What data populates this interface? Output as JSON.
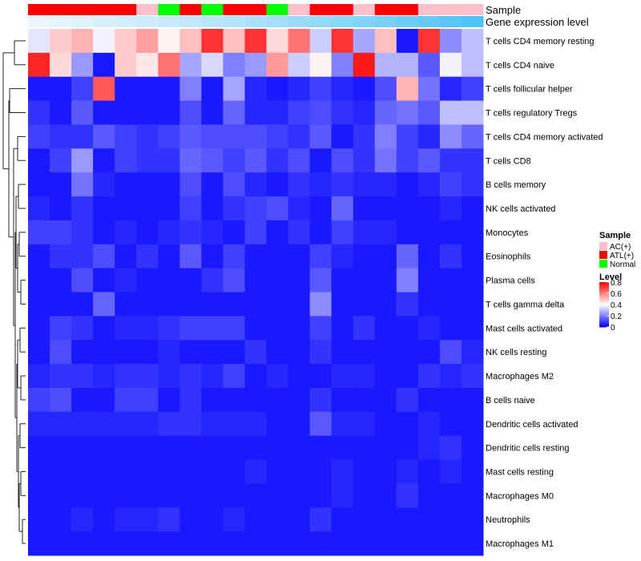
{
  "chart_data": {
    "type": "heatmap",
    "annotation_labels": [
      "Sample",
      "Gene expression level"
    ],
    "rows": [
      "T cells CD4 memory resting",
      "T cells CD4 naive",
      "T cells follicular helper",
      "T cells regulatory  Tregs",
      "T cells CD4 memory activated",
      "T cells CD8",
      "B cells memory",
      "NK cells activated",
      "Monocytes",
      "Eosinophils",
      "Plasma cells",
      "T cells gamma delta",
      "Mast cells activated",
      "NK cells resting",
      "Macrophages M2",
      "B cells naive",
      "Dendritic cells activated",
      "Dendritic cells resting",
      "Mast cells resting",
      "Macrophages M0",
      "Neutrophils",
      "Macrophages M1"
    ],
    "sample_groups": [
      "ATL(+)",
      "ATL(+)",
      "ATL(+)",
      "ATL(+)",
      "ATL(+)",
      "AC(+)",
      "Normal",
      "ATL(+)",
      "Normal",
      "ATL(+)",
      "ATL(+)",
      "Normal",
      "AC(+)",
      "ATL(+)",
      "ATL(+)",
      "AC(+)",
      "ATL(+)",
      "ATL(+)",
      "AC(+)",
      "AC(+)",
      "AC(+)"
    ],
    "expression_level": [
      0.02,
      0.05,
      0.08,
      0.11,
      0.14,
      0.17,
      0.2,
      0.23,
      0.26,
      0.3,
      0.34,
      0.38,
      0.42,
      0.46,
      0.5,
      0.55,
      0.6,
      0.65,
      0.7,
      0.75,
      0.8
    ],
    "values": [
      [
        0.36,
        0.48,
        0.52,
        0.38,
        0.48,
        0.55,
        0.42,
        0.5,
        0.72,
        0.5,
        0.72,
        0.46,
        0.62,
        0.32,
        0.72,
        0.26,
        0.5,
        0.04,
        0.72,
        0.22,
        0.3
      ],
      [
        0.74,
        0.46,
        0.24,
        0.04,
        0.48,
        0.44,
        0.62,
        0.26,
        0.34,
        0.2,
        0.24,
        0.56,
        0.32,
        0.42,
        0.2,
        0.76,
        0.28,
        0.28,
        0.14,
        0.38,
        0.3
      ],
      [
        0.04,
        0.04,
        0.1,
        0.66,
        0.04,
        0.04,
        0.04,
        0.2,
        0.04,
        0.26,
        0.06,
        0.04,
        0.06,
        0.1,
        0.06,
        0.04,
        0.12,
        0.52,
        0.18,
        0.06,
        0.1
      ],
      [
        0.08,
        0.04,
        0.14,
        0.04,
        0.04,
        0.04,
        0.04,
        0.12,
        0.04,
        0.16,
        0.06,
        0.06,
        0.1,
        0.12,
        0.08,
        0.06,
        0.16,
        0.18,
        0.14,
        0.3,
        0.3
      ],
      [
        0.1,
        0.08,
        0.08,
        0.14,
        0.1,
        0.08,
        0.1,
        0.14,
        0.12,
        0.12,
        0.12,
        0.1,
        0.08,
        0.14,
        0.04,
        0.08,
        0.2,
        0.1,
        0.06,
        0.22,
        0.16
      ],
      [
        0.04,
        0.1,
        0.24,
        0.04,
        0.1,
        0.08,
        0.08,
        0.16,
        0.14,
        0.1,
        0.14,
        0.08,
        0.12,
        0.04,
        0.12,
        0.08,
        0.18,
        0.1,
        0.14,
        0.08,
        0.08
      ],
      [
        0.04,
        0.04,
        0.18,
        0.06,
        0.04,
        0.04,
        0.04,
        0.12,
        0.04,
        0.12,
        0.06,
        0.04,
        0.08,
        0.06,
        0.08,
        0.06,
        0.06,
        0.04,
        0.06,
        0.1,
        0.08
      ],
      [
        0.06,
        0.04,
        0.08,
        0.04,
        0.04,
        0.04,
        0.04,
        0.1,
        0.04,
        0.08,
        0.1,
        0.12,
        0.06,
        0.04,
        0.16,
        0.04,
        0.04,
        0.04,
        0.04,
        0.06,
        0.04
      ],
      [
        0.1,
        0.1,
        0.08,
        0.04,
        0.06,
        0.04,
        0.06,
        0.08,
        0.06,
        0.04,
        0.1,
        0.04,
        0.08,
        0.04,
        0.1,
        0.06,
        0.06,
        0.04,
        0.04,
        0.04,
        0.04
      ],
      [
        0.04,
        0.08,
        0.08,
        0.12,
        0.04,
        0.08,
        0.04,
        0.14,
        0.04,
        0.1,
        0.04,
        0.04,
        0.04,
        0.1,
        0.06,
        0.04,
        0.04,
        0.16,
        0.04,
        0.08,
        0.04
      ],
      [
        0.04,
        0.04,
        0.12,
        0.04,
        0.06,
        0.04,
        0.04,
        0.04,
        0.08,
        0.12,
        0.04,
        0.04,
        0.04,
        0.14,
        0.04,
        0.04,
        0.04,
        0.2,
        0.04,
        0.04,
        0.04
      ],
      [
        0.04,
        0.04,
        0.04,
        0.16,
        0.04,
        0.04,
        0.04,
        0.04,
        0.04,
        0.04,
        0.04,
        0.04,
        0.04,
        0.22,
        0.04,
        0.04,
        0.04,
        0.08,
        0.04,
        0.04,
        0.04
      ],
      [
        0.04,
        0.1,
        0.08,
        0.04,
        0.06,
        0.06,
        0.08,
        0.1,
        0.1,
        0.1,
        0.04,
        0.04,
        0.04,
        0.1,
        0.04,
        0.08,
        0.04,
        0.04,
        0.06,
        0.04,
        0.04
      ],
      [
        0.04,
        0.12,
        0.04,
        0.04,
        0.04,
        0.04,
        0.06,
        0.04,
        0.04,
        0.04,
        0.08,
        0.04,
        0.04,
        0.08,
        0.04,
        0.04,
        0.04,
        0.04,
        0.04,
        0.12,
        0.06
      ],
      [
        0.06,
        0.08,
        0.08,
        0.06,
        0.08,
        0.08,
        0.06,
        0.08,
        0.06,
        0.1,
        0.04,
        0.06,
        0.04,
        0.04,
        0.06,
        0.06,
        0.04,
        0.04,
        0.08,
        0.06,
        0.08
      ],
      [
        0.1,
        0.12,
        0.04,
        0.04,
        0.1,
        0.1,
        0.04,
        0.08,
        0.04,
        0.04,
        0.04,
        0.04,
        0.04,
        0.08,
        0.04,
        0.04,
        0.04,
        0.08,
        0.04,
        0.04,
        0.04
      ],
      [
        0.06,
        0.06,
        0.06,
        0.06,
        0.06,
        0.06,
        0.08,
        0.08,
        0.06,
        0.06,
        0.06,
        0.04,
        0.04,
        0.14,
        0.06,
        0.06,
        0.04,
        0.04,
        0.06,
        0.04,
        0.04
      ],
      [
        0.04,
        0.04,
        0.04,
        0.04,
        0.04,
        0.04,
        0.04,
        0.04,
        0.04,
        0.04,
        0.04,
        0.04,
        0.04,
        0.04,
        0.04,
        0.04,
        0.04,
        0.04,
        0.06,
        0.08,
        0.04
      ],
      [
        0.04,
        0.04,
        0.04,
        0.04,
        0.04,
        0.04,
        0.04,
        0.04,
        0.04,
        0.04,
        0.06,
        0.04,
        0.04,
        0.04,
        0.06,
        0.04,
        0.04,
        0.06,
        0.04,
        0.06,
        0.04
      ],
      [
        0.04,
        0.04,
        0.04,
        0.04,
        0.04,
        0.04,
        0.04,
        0.04,
        0.04,
        0.04,
        0.04,
        0.04,
        0.04,
        0.04,
        0.06,
        0.04,
        0.04,
        0.08,
        0.04,
        0.04,
        0.04
      ],
      [
        0.04,
        0.04,
        0.06,
        0.04,
        0.06,
        0.06,
        0.08,
        0.04,
        0.04,
        0.06,
        0.04,
        0.04,
        0.04,
        0.08,
        0.04,
        0.04,
        0.04,
        0.04,
        0.04,
        0.04,
        0.04
      ],
      [
        0.04,
        0.04,
        0.04,
        0.04,
        0.04,
        0.04,
        0.04,
        0.04,
        0.04,
        0.04,
        0.04,
        0.04,
        0.04,
        0.04,
        0.04,
        0.04,
        0.04,
        0.04,
        0.04,
        0.04,
        0.04
      ]
    ],
    "color_scale": {
      "min": 0,
      "max": 0.8,
      "low": "#0000ff",
      "mid": "#ffffff",
      "high": "#ff0000",
      "mid_value": 0.4
    },
    "legend": {
      "sample_title": "Sample",
      "sample_items": [
        {
          "label": "AC(+)",
          "color": "#ffc0cb"
        },
        {
          "label": "ATL(+)",
          "color": "#ff0000"
        },
        {
          "label": "Normal",
          "color": "#00ff00"
        }
      ],
      "level_title": "Level",
      "level_ticks": [
        "0.8",
        "0.6",
        "0.4",
        "0.2",
        "0"
      ],
      "level_values": [
        0.8,
        0.6,
        0.4,
        0.2,
        0
      ],
      "position": "right"
    },
    "expression_colors": {
      "light": "#eaf6fc",
      "dark": "#4fc3f7"
    },
    "dendrogram": "row-clustering"
  }
}
